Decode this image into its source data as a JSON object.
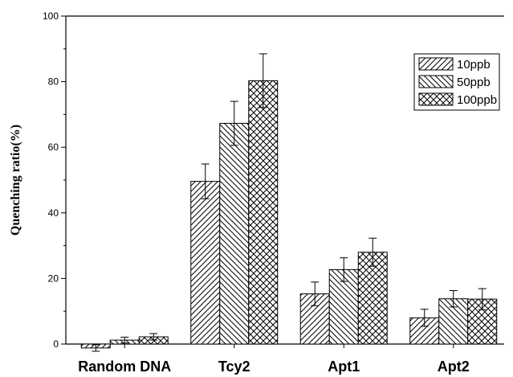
{
  "chart_data": {
    "type": "bar",
    "categories": [
      "Random DNA",
      "Tcy2",
      "Apt1",
      "Apt2"
    ],
    "series": [
      {
        "name": "10ppb",
        "values": [
          -1.2,
          49.6,
          15.3,
          8.0
        ],
        "errors": [
          1.0,
          5.3,
          3.6,
          2.6
        ],
        "pattern": "diag-right"
      },
      {
        "name": "50ppb",
        "values": [
          1.2,
          67.3,
          22.7,
          13.8
        ],
        "errors": [
          0.9,
          6.7,
          3.6,
          2.5
        ],
        "pattern": "diag-left"
      },
      {
        "name": "100ppb",
        "values": [
          2.2,
          80.3,
          28.0,
          13.7
        ],
        "errors": [
          1.0,
          8.2,
          4.3,
          3.2
        ],
        "pattern": "crosshatch"
      }
    ],
    "ylabel": "Quenching ratio(%)",
    "ylim": [
      0,
      100
    ],
    "yticks": [
      0,
      20,
      40,
      60,
      80,
      100
    ],
    "grid": false,
    "legend_position": "top-right"
  }
}
